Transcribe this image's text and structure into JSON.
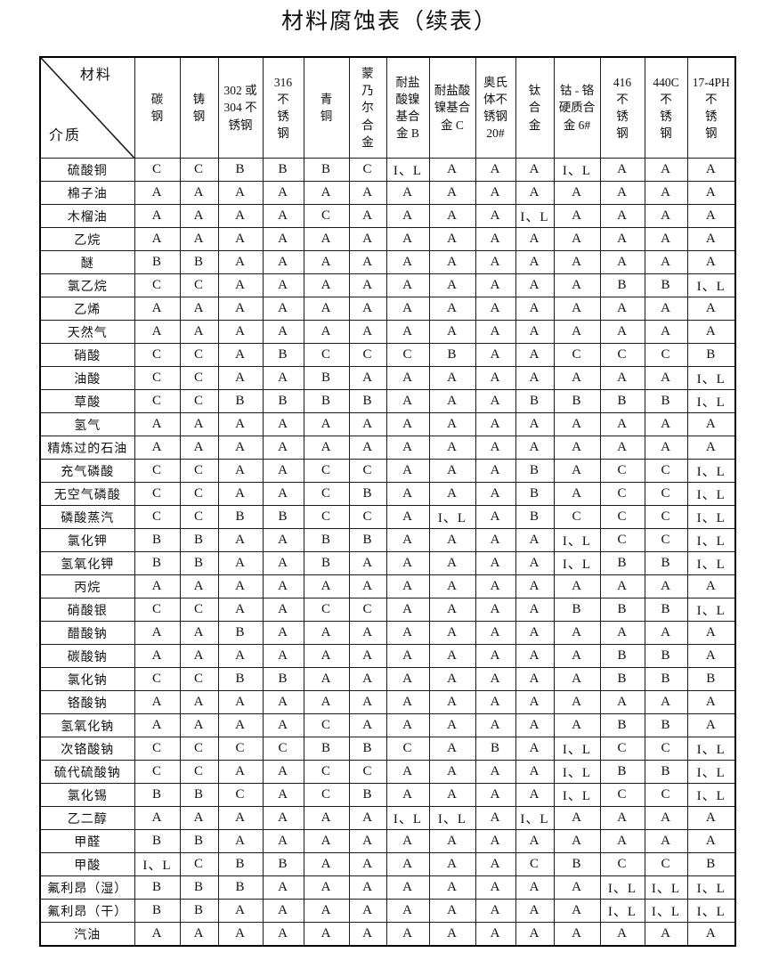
{
  "page": {
    "title": "材料腐蚀表（续表）"
  },
  "table": {
    "corner": {
      "material_label": "材料",
      "medium_label": "介质"
    },
    "columns": [
      "碳\n钢",
      "铸\n钢",
      "302 或\n304 不\n锈钢",
      "316\n不\n锈\n钢",
      "青\n铜",
      "蒙\n乃\n尔\n合\n金",
      "耐盐\n酸镍\n基合\n金 B",
      "耐盐酸\n镍基合\n金 C",
      "奥氏\n体不\n锈钢\n20#",
      "钛\n合\n金",
      "钴 - 铬\n硬质合\n金 6#",
      "416\n不\n锈\n钢",
      "440C\n不\n锈\n钢",
      "17-4PH\n不\n锈\n钢"
    ],
    "rows": [
      {
        "medium": "硫酸铜",
        "values": [
          "C",
          "C",
          "B",
          "B",
          "B",
          "C",
          "I、L",
          "A",
          "A",
          "A",
          "I、L",
          "A",
          "A",
          "A"
        ]
      },
      {
        "medium": "棉子油",
        "values": [
          "A",
          "A",
          "A",
          "A",
          "A",
          "A",
          "A",
          "A",
          "A",
          "A",
          "A",
          "A",
          "A",
          "A"
        ]
      },
      {
        "medium": "木榴油",
        "values": [
          "A",
          "A",
          "A",
          "A",
          "C",
          "A",
          "A",
          "A",
          "A",
          "I、L",
          "A",
          "A",
          "A",
          "A"
        ]
      },
      {
        "medium": "乙烷",
        "values": [
          "A",
          "A",
          "A",
          "A",
          "A",
          "A",
          "A",
          "A",
          "A",
          "A",
          "A",
          "A",
          "A",
          "A"
        ]
      },
      {
        "medium": "醚",
        "values": [
          "B",
          "B",
          "A",
          "A",
          "A",
          "A",
          "A",
          "A",
          "A",
          "A",
          "A",
          "A",
          "A",
          "A"
        ]
      },
      {
        "medium": "氯乙烷",
        "values": [
          "C",
          "C",
          "A",
          "A",
          "A",
          "A",
          "A",
          "A",
          "A",
          "A",
          "A",
          "B",
          "B",
          "I、L"
        ]
      },
      {
        "medium": "乙烯",
        "values": [
          "A",
          "A",
          "A",
          "A",
          "A",
          "A",
          "A",
          "A",
          "A",
          "A",
          "A",
          "A",
          "A",
          "A"
        ]
      },
      {
        "medium": "天然气",
        "values": [
          "A",
          "A",
          "A",
          "A",
          "A",
          "A",
          "A",
          "A",
          "A",
          "A",
          "A",
          "A",
          "A",
          "A"
        ]
      },
      {
        "medium": "硝酸",
        "values": [
          "C",
          "C",
          "A",
          "B",
          "C",
          "C",
          "C",
          "B",
          "A",
          "A",
          "C",
          "C",
          "C",
          "B"
        ]
      },
      {
        "medium": "油酸",
        "values": [
          "C",
          "C",
          "A",
          "A",
          "B",
          "A",
          "A",
          "A",
          "A",
          "A",
          "A",
          "A",
          "A",
          "I、L"
        ]
      },
      {
        "medium": "草酸",
        "values": [
          "C",
          "C",
          "B",
          "B",
          "B",
          "B",
          "A",
          "A",
          "A",
          "B",
          "B",
          "B",
          "B",
          "I、L"
        ]
      },
      {
        "medium": "氢气",
        "values": [
          "A",
          "A",
          "A",
          "A",
          "A",
          "A",
          "A",
          "A",
          "A",
          "A",
          "A",
          "A",
          "A",
          "A"
        ]
      },
      {
        "medium": "精炼过的石油",
        "values": [
          "A",
          "A",
          "A",
          "A",
          "A",
          "A",
          "A",
          "A",
          "A",
          "A",
          "A",
          "A",
          "A",
          "A"
        ]
      },
      {
        "medium": "充气磷酸",
        "values": [
          "C",
          "C",
          "A",
          "A",
          "C",
          "C",
          "A",
          "A",
          "A",
          "B",
          "A",
          "C",
          "C",
          "I、L"
        ]
      },
      {
        "medium": "无空气磷酸",
        "values": [
          "C",
          "C",
          "A",
          "A",
          "C",
          "B",
          "A",
          "A",
          "A",
          "B",
          "A",
          "C",
          "C",
          "I、L"
        ]
      },
      {
        "medium": "磷酸蒸汽",
        "values": [
          "C",
          "C",
          "B",
          "B",
          "C",
          "C",
          "A",
          "I、L",
          "A",
          "B",
          "C",
          "C",
          "C",
          "I、L"
        ]
      },
      {
        "medium": "氯化钾",
        "values": [
          "B",
          "B",
          "A",
          "A",
          "B",
          "B",
          "A",
          "A",
          "A",
          "A",
          "I、L",
          "C",
          "C",
          "I、L"
        ]
      },
      {
        "medium": "氢氧化钾",
        "values": [
          "B",
          "B",
          "A",
          "A",
          "B",
          "A",
          "A",
          "A",
          "A",
          "A",
          "I、L",
          "B",
          "B",
          "I、L"
        ]
      },
      {
        "medium": "丙烷",
        "values": [
          "A",
          "A",
          "A",
          "A",
          "A",
          "A",
          "A",
          "A",
          "A",
          "A",
          "A",
          "A",
          "A",
          "A"
        ]
      },
      {
        "medium": "硝酸银",
        "values": [
          "C",
          "C",
          "A",
          "A",
          "C",
          "C",
          "A",
          "A",
          "A",
          "A",
          "B",
          "B",
          "B",
          "I、L"
        ]
      },
      {
        "medium": "醋酸钠",
        "values": [
          "A",
          "A",
          "B",
          "A",
          "A",
          "A",
          "A",
          "A",
          "A",
          "A",
          "A",
          "A",
          "A",
          "A"
        ]
      },
      {
        "medium": "碳酸钠",
        "values": [
          "A",
          "A",
          "A",
          "A",
          "A",
          "A",
          "A",
          "A",
          "A",
          "A",
          "A",
          "B",
          "B",
          "A"
        ]
      },
      {
        "medium": "氯化钠",
        "values": [
          "C",
          "C",
          "B",
          "B",
          "A",
          "A",
          "A",
          "A",
          "A",
          "A",
          "A",
          "B",
          "B",
          "B"
        ]
      },
      {
        "medium": "铬酸钠",
        "values": [
          "A",
          "A",
          "A",
          "A",
          "A",
          "A",
          "A",
          "A",
          "A",
          "A",
          "A",
          "A",
          "A",
          "A"
        ]
      },
      {
        "medium": "氢氧化钠",
        "values": [
          "A",
          "A",
          "A",
          "A",
          "C",
          "A",
          "A",
          "A",
          "A",
          "A",
          "A",
          "B",
          "B",
          "A"
        ]
      },
      {
        "medium": "次铬酸钠",
        "values": [
          "C",
          "C",
          "C",
          "C",
          "B",
          "B",
          "C",
          "A",
          "B",
          "A",
          "I、L",
          "C",
          "C",
          "I、L"
        ]
      },
      {
        "medium": "硫代硫酸钠",
        "values": [
          "C",
          "C",
          "A",
          "A",
          "C",
          "C",
          "A",
          "A",
          "A",
          "A",
          "I、L",
          "B",
          "B",
          "I、L"
        ]
      },
      {
        "medium": "氯化锡",
        "values": [
          "B",
          "B",
          "C",
          "A",
          "C",
          "B",
          "A",
          "A",
          "A",
          "A",
          "I、L",
          "C",
          "C",
          "I、L"
        ]
      },
      {
        "medium": "乙二醇",
        "values": [
          "A",
          "A",
          "A",
          "A",
          "A",
          "A",
          "I、L",
          "I、L",
          "A",
          "I、L",
          "A",
          "A",
          "A",
          "A"
        ]
      },
      {
        "medium": "甲醛",
        "values": [
          "B",
          "B",
          "A",
          "A",
          "A",
          "A",
          "A",
          "A",
          "A",
          "A",
          "A",
          "A",
          "A",
          "A"
        ]
      },
      {
        "medium": "甲酸",
        "values": [
          "I、L",
          "C",
          "B",
          "B",
          "A",
          "A",
          "A",
          "A",
          "A",
          "C",
          "B",
          "C",
          "C",
          "B"
        ]
      },
      {
        "medium": "氟利昂（湿）",
        "values": [
          "B",
          "B",
          "B",
          "A",
          "A",
          "A",
          "A",
          "A",
          "A",
          "A",
          "A",
          "I、L",
          "I、L",
          "I、L"
        ]
      },
      {
        "medium": "氟利昂（干）",
        "values": [
          "B",
          "B",
          "A",
          "A",
          "A",
          "A",
          "A",
          "A",
          "A",
          "A",
          "A",
          "I、L",
          "I、L",
          "I、L"
        ]
      },
      {
        "medium": "汽油",
        "values": [
          "A",
          "A",
          "A",
          "A",
          "A",
          "A",
          "A",
          "A",
          "A",
          "A",
          "A",
          "A",
          "A",
          "A"
        ]
      }
    ]
  }
}
